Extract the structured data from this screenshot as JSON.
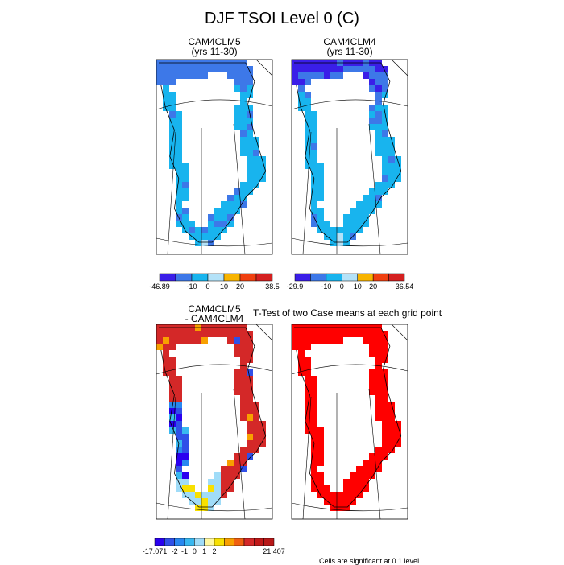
{
  "title": "DJF TSOI Level 0 (C)",
  "colors": {
    "case1_palette": [
      "#3a1ee8",
      "#3d78e8",
      "#18b4ee",
      "#b4e2f8",
      "#f8b400",
      "#f04010",
      "#d42020"
    ],
    "case2_palette": [
      "#3a1ee8",
      "#3d78e8",
      "#18b4ee",
      "#b4e2f8",
      "#f8b400",
      "#f04010",
      "#d42020"
    ],
    "diff_palette": [
      "#2a00f0",
      "#3050e8",
      "#2888f0",
      "#38b8f0",
      "#a0dcf8",
      "#fff8a0",
      "#f8e000",
      "#f8a000",
      "#f06010",
      "#d42828"
    ],
    "ttest_color": "#ff0000",
    "land_line": "#000000"
  },
  "panels": [
    {
      "id": "case1",
      "title_line1": "CAM4CLM5",
      "title_line2": "(yrs 11-30)"
    },
    {
      "id": "case2",
      "title_line1": "CAM4CLM4",
      "title_line2": "(yrs 11-30)"
    },
    {
      "id": "diff",
      "title_line1": "CAM4CLM5",
      "title_line2": "- CAM4CLM4"
    },
    {
      "id": "ttest",
      "title_line1": "T-Test of two Case means at each grid point",
      "title_line2": ""
    }
  ],
  "chart_data": [
    {
      "type": "heatmap",
      "title": "CAM4CLM5 (yrs 11-30)",
      "colorbar": {
        "labels": [
          "-46.89",
          "-10",
          "0",
          "10",
          "20",
          "38.5"
        ],
        "min": -46.89,
        "max": 38.5
      }
    },
    {
      "type": "heatmap",
      "title": "CAM4CLM4 (yrs 11-30)",
      "colorbar": {
        "labels": [
          "-29.9",
          "-10",
          "0",
          "10",
          "20",
          "36.54"
        ],
        "min": -29.9,
        "max": 36.54
      }
    },
    {
      "type": "heatmap",
      "title": "CAM4CLM5 - CAM4CLM4",
      "colorbar": {
        "labels": [
          "-17.071",
          "-2",
          "-1",
          "0",
          "1",
          "2",
          "21.407"
        ],
        "min": -17.071,
        "max": 21.407
      }
    },
    {
      "type": "heatmap",
      "title": "T-Test of two Case means at each grid point",
      "note": "Cells are significant at 0.1 level"
    }
  ],
  "footer_note": "Cells are significant at 0.1 level"
}
